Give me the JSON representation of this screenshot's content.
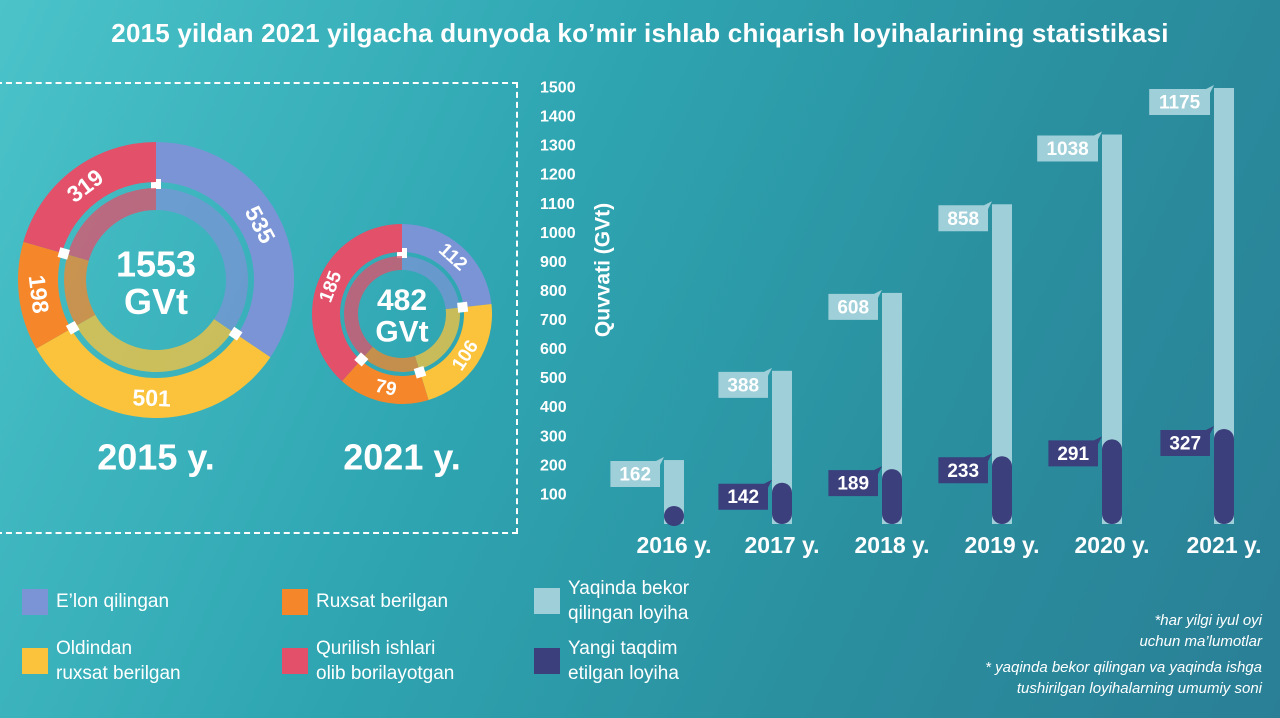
{
  "title": "2015 yildan 2021 yilgacha dunyoda ko’mir ishlab chiqarish loyihalarining statistikasi",
  "colors": {
    "elon": "#7b94d6",
    "ruxsat": "#f5872a",
    "oldindan": "#fbc33c",
    "qurilish": "#e25069",
    "bekor": "#9fcfd8",
    "yangi": "#3b3f7c"
  },
  "donuts": [
    {
      "year_label": "2015 y.",
      "total_value": "1553",
      "total_unit": "GVt",
      "segments": [
        {
          "key": "elon",
          "value": 535
        },
        {
          "key": "oldindan",
          "value": 501
        },
        {
          "key": "ruxsat",
          "value": 198
        },
        {
          "key": "qurilish",
          "value": 319
        }
      ]
    },
    {
      "year_label": "2021 y.",
      "total_value": "482",
      "total_unit": "GVt",
      "segments": [
        {
          "key": "elon",
          "value": 112
        },
        {
          "key": "oldindan",
          "value": 106
        },
        {
          "key": "ruxsat",
          "value": 79
        },
        {
          "key": "qurilish",
          "value": 185
        }
      ]
    }
  ],
  "chart_data": {
    "type": "bar",
    "categories": [
      "2016 y.",
      "2017 y.",
      "2018 y.",
      "2019 y.",
      "2020 y.",
      "2021 y."
    ],
    "series": [
      {
        "name": "Yaqinda bekor qilingan loyiha",
        "values": [
          162,
          388,
          608,
          858,
          1038,
          1175
        ]
      },
      {
        "name": "Yangi taqdim etilgan loyiha",
        "values": [
          null,
          142,
          189,
          233,
          291,
          327
        ]
      }
    ],
    "ylabel": "Quvvati (GVt)",
    "ylim": [
      0,
      1500
    ],
    "yticks": [
      100,
      200,
      300,
      400,
      500,
      600,
      700,
      800,
      900,
      1000,
      1100,
      1200,
      1300,
      1400,
      1500
    ],
    "bar_tops": [
      220,
      527,
      795,
      1100,
      1340,
      1500
    ]
  },
  "legend": [
    {
      "key": "elon",
      "label": "E’lon qilingan"
    },
    {
      "key": "ruxsat",
      "label": "Ruxsat berilgan"
    },
    {
      "key": "bekor",
      "label": "Yaqinda bekor\nqilingan loyiha"
    },
    {
      "key": "oldindan",
      "label": "Oldindan\nruxsat berilgan"
    },
    {
      "key": "qurilish",
      "label": "Qurilish ishlari\nolib borilayotgan"
    },
    {
      "key": "yangi",
      "label": "Yangi taqdim\netilgan loyiha"
    }
  ],
  "notes": {
    "note1": "*har yilgi iyul oyi\nuchun ma’lumotlar",
    "note2": "* yaqinda bekor qilingan va yaqinda ishga\ntushirilgan loyihalarning umumiy soni"
  }
}
